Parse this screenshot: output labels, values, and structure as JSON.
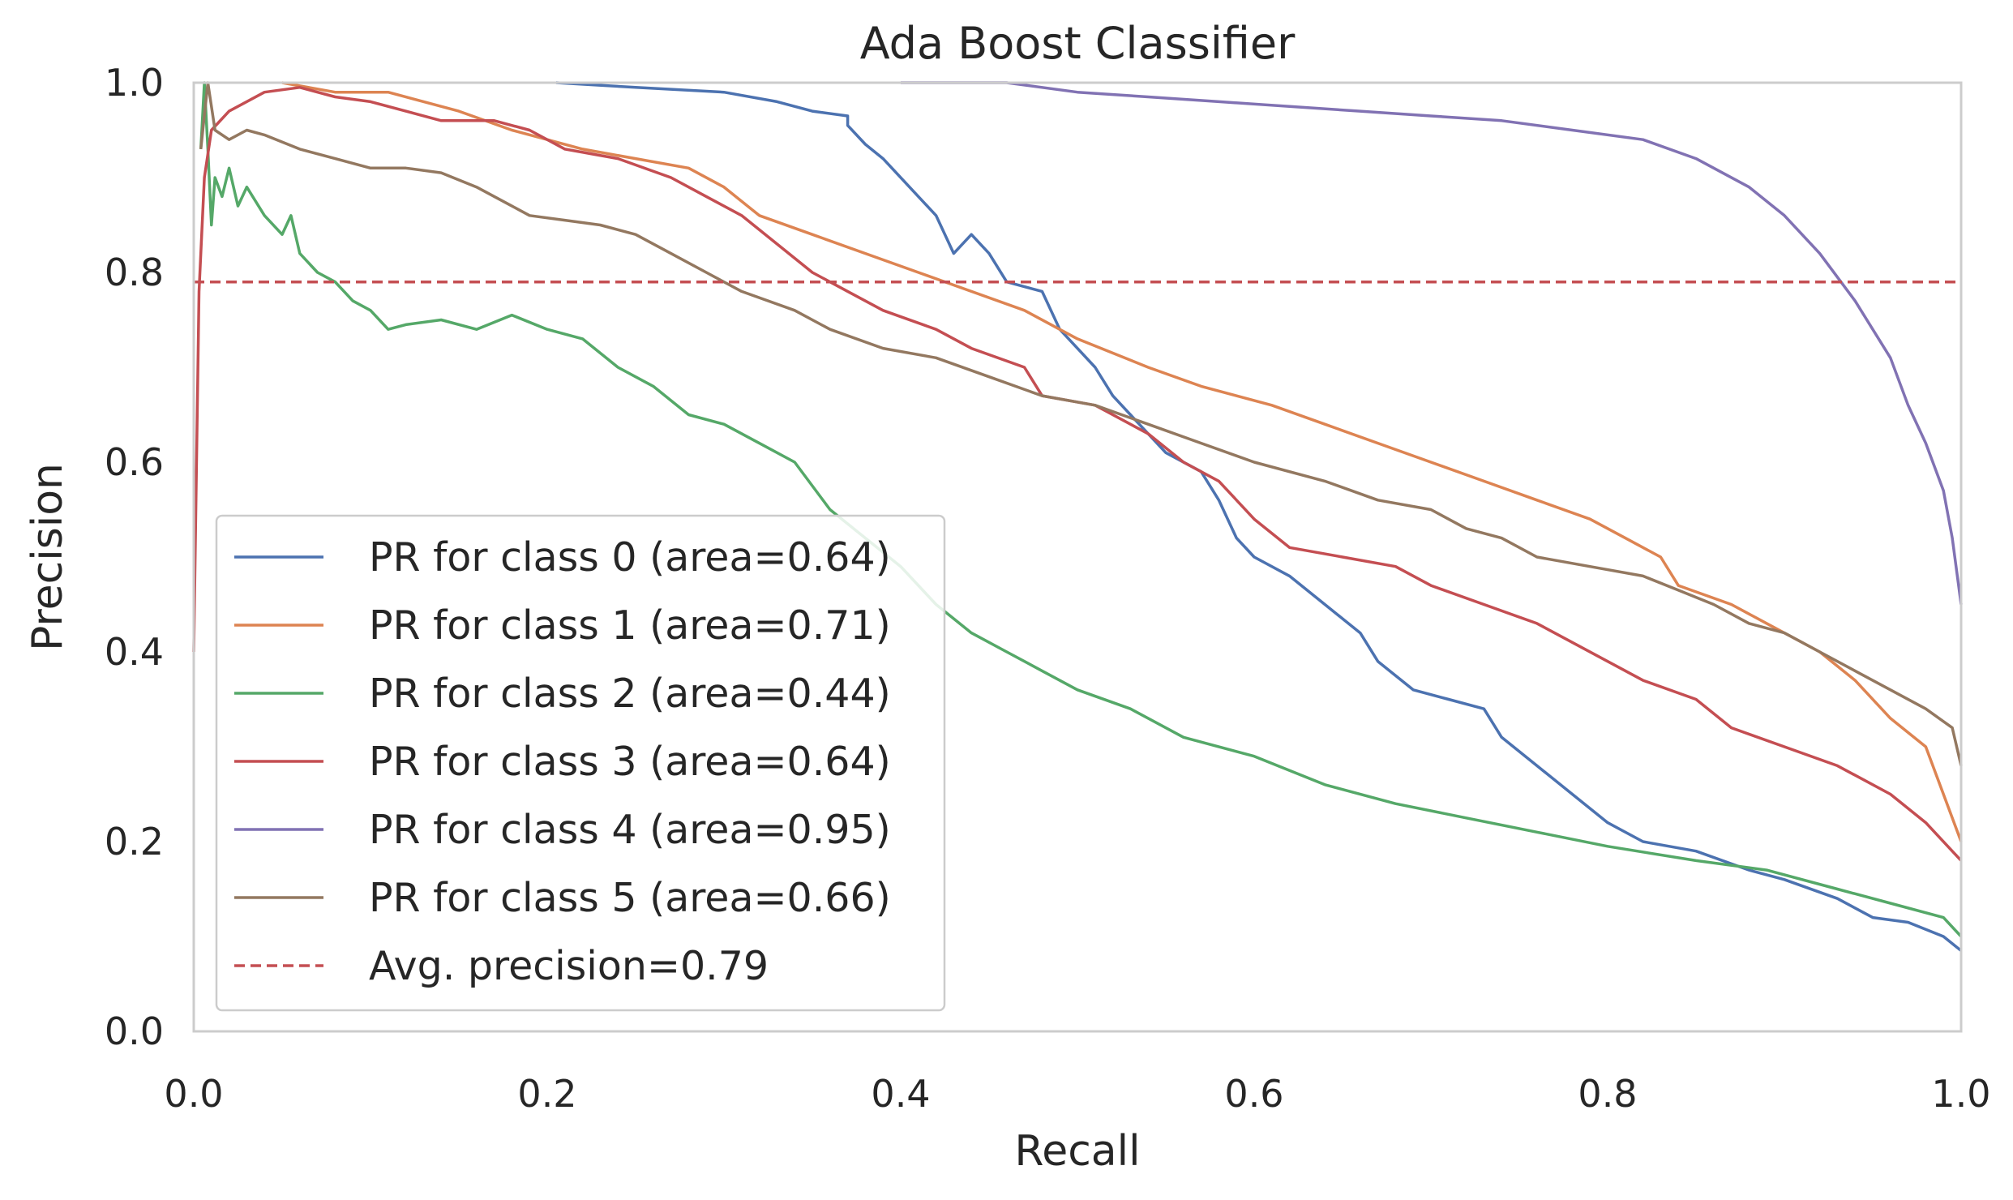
{
  "chart_data": {
    "type": "line",
    "title": "Ada Boost Classifier",
    "xlabel": "Recall",
    "ylabel": "Precision",
    "xlim": [
      0.0,
      1.0
    ],
    "ylim": [
      0.0,
      1.0
    ],
    "xticks": [
      "0.0",
      "0.2",
      "0.4",
      "0.6",
      "0.8",
      "1.0"
    ],
    "yticks": [
      "0.0",
      "0.2",
      "0.4",
      "0.6",
      "0.8",
      "1.0"
    ],
    "grid": false,
    "legend_position": "lower-left",
    "series": [
      {
        "name": "PR for class 0 (area=0.64)",
        "color": "#4c72b0",
        "points": [
          [
            0.205,
            1.0
          ],
          [
            0.25,
            0.995
          ],
          [
            0.3,
            0.99
          ],
          [
            0.33,
            0.98
          ],
          [
            0.35,
            0.97
          ],
          [
            0.37,
            0.965
          ],
          [
            0.37,
            0.955
          ],
          [
            0.38,
            0.935
          ],
          [
            0.39,
            0.92
          ],
          [
            0.41,
            0.88
          ],
          [
            0.42,
            0.86
          ],
          [
            0.43,
            0.82
          ],
          [
            0.44,
            0.84
          ],
          [
            0.45,
            0.82
          ],
          [
            0.46,
            0.79
          ],
          [
            0.48,
            0.78
          ],
          [
            0.49,
            0.74
          ],
          [
            0.5,
            0.72
          ],
          [
            0.51,
            0.7
          ],
          [
            0.52,
            0.67
          ],
          [
            0.53,
            0.65
          ],
          [
            0.54,
            0.63
          ],
          [
            0.55,
            0.61
          ],
          [
            0.57,
            0.59
          ],
          [
            0.58,
            0.56
          ],
          [
            0.59,
            0.52
          ],
          [
            0.6,
            0.5
          ],
          [
            0.62,
            0.48
          ],
          [
            0.64,
            0.45
          ],
          [
            0.66,
            0.42
          ],
          [
            0.67,
            0.39
          ],
          [
            0.69,
            0.36
          ],
          [
            0.71,
            0.35
          ],
          [
            0.73,
            0.34
          ],
          [
            0.74,
            0.31
          ],
          [
            0.76,
            0.28
          ],
          [
            0.78,
            0.25
          ],
          [
            0.8,
            0.22
          ],
          [
            0.82,
            0.2
          ],
          [
            0.85,
            0.19
          ],
          [
            0.88,
            0.17
          ],
          [
            0.9,
            0.16
          ],
          [
            0.93,
            0.14
          ],
          [
            0.95,
            0.12
          ],
          [
            0.97,
            0.115
          ],
          [
            0.99,
            0.1
          ],
          [
            1.0,
            0.085
          ]
        ]
      },
      {
        "name": "PR for class 1 (area=0.71)",
        "color": "#dd8452",
        "points": [
          [
            0.05,
            1.0
          ],
          [
            0.08,
            0.99
          ],
          [
            0.11,
            0.99
          ],
          [
            0.15,
            0.97
          ],
          [
            0.18,
            0.95
          ],
          [
            0.2,
            0.94
          ],
          [
            0.22,
            0.93
          ],
          [
            0.25,
            0.92
          ],
          [
            0.28,
            0.91
          ],
          [
            0.3,
            0.89
          ],
          [
            0.32,
            0.86
          ],
          [
            0.35,
            0.84
          ],
          [
            0.38,
            0.82
          ],
          [
            0.41,
            0.8
          ],
          [
            0.44,
            0.78
          ],
          [
            0.47,
            0.76
          ],
          [
            0.5,
            0.73
          ],
          [
            0.54,
            0.7
          ],
          [
            0.57,
            0.68
          ],
          [
            0.61,
            0.66
          ],
          [
            0.64,
            0.64
          ],
          [
            0.67,
            0.62
          ],
          [
            0.7,
            0.6
          ],
          [
            0.73,
            0.58
          ],
          [
            0.76,
            0.56
          ],
          [
            0.79,
            0.54
          ],
          [
            0.81,
            0.52
          ],
          [
            0.83,
            0.5
          ],
          [
            0.84,
            0.47
          ],
          [
            0.87,
            0.45
          ],
          [
            0.89,
            0.43
          ],
          [
            0.92,
            0.4
          ],
          [
            0.94,
            0.37
          ],
          [
            0.96,
            0.33
          ],
          [
            0.98,
            0.3
          ],
          [
            0.99,
            0.25
          ],
          [
            1.0,
            0.2
          ]
        ]
      },
      {
        "name": "PR for class 2 (area=0.44)",
        "color": "#55a868",
        "points": [
          [
            0.004,
            0.93
          ],
          [
            0.006,
            1.0
          ],
          [
            0.008,
            0.93
          ],
          [
            0.01,
            0.85
          ],
          [
            0.012,
            0.9
          ],
          [
            0.016,
            0.88
          ],
          [
            0.02,
            0.91
          ],
          [
            0.025,
            0.87
          ],
          [
            0.03,
            0.89
          ],
          [
            0.04,
            0.86
          ],
          [
            0.05,
            0.84
          ],
          [
            0.055,
            0.86
          ],
          [
            0.06,
            0.82
          ],
          [
            0.07,
            0.8
          ],
          [
            0.08,
            0.79
          ],
          [
            0.09,
            0.77
          ],
          [
            0.1,
            0.76
          ],
          [
            0.11,
            0.74
          ],
          [
            0.12,
            0.745
          ],
          [
            0.14,
            0.75
          ],
          [
            0.16,
            0.74
          ],
          [
            0.18,
            0.755
          ],
          [
            0.2,
            0.74
          ],
          [
            0.22,
            0.73
          ],
          [
            0.24,
            0.7
          ],
          [
            0.26,
            0.68
          ],
          [
            0.28,
            0.65
          ],
          [
            0.3,
            0.64
          ],
          [
            0.32,
            0.62
          ],
          [
            0.34,
            0.6
          ],
          [
            0.36,
            0.55
          ],
          [
            0.38,
            0.52
          ],
          [
            0.4,
            0.49
          ],
          [
            0.42,
            0.45
          ],
          [
            0.44,
            0.42
          ],
          [
            0.46,
            0.4
          ],
          [
            0.48,
            0.38
          ],
          [
            0.5,
            0.36
          ],
          [
            0.53,
            0.34
          ],
          [
            0.56,
            0.31
          ],
          [
            0.6,
            0.29
          ],
          [
            0.64,
            0.26
          ],
          [
            0.68,
            0.24
          ],
          [
            0.72,
            0.225
          ],
          [
            0.76,
            0.21
          ],
          [
            0.8,
            0.195
          ],
          [
            0.85,
            0.18
          ],
          [
            0.89,
            0.17
          ],
          [
            0.93,
            0.15
          ],
          [
            0.96,
            0.135
          ],
          [
            0.99,
            0.12
          ],
          [
            1.0,
            0.1
          ]
        ]
      },
      {
        "name": "PR for class 3 (area=0.64)",
        "color": "#c44e52",
        "points": [
          [
            0.0,
            0.4
          ],
          [
            0.003,
            0.78
          ],
          [
            0.006,
            0.9
          ],
          [
            0.01,
            0.95
          ],
          [
            0.02,
            0.97
          ],
          [
            0.04,
            0.99
          ],
          [
            0.06,
            0.995
          ],
          [
            0.08,
            0.985
          ],
          [
            0.1,
            0.98
          ],
          [
            0.12,
            0.97
          ],
          [
            0.14,
            0.96
          ],
          [
            0.17,
            0.96
          ],
          [
            0.19,
            0.95
          ],
          [
            0.21,
            0.93
          ],
          [
            0.24,
            0.92
          ],
          [
            0.27,
            0.9
          ],
          [
            0.29,
            0.88
          ],
          [
            0.31,
            0.86
          ],
          [
            0.33,
            0.83
          ],
          [
            0.35,
            0.8
          ],
          [
            0.37,
            0.78
          ],
          [
            0.39,
            0.76
          ],
          [
            0.42,
            0.74
          ],
          [
            0.44,
            0.72
          ],
          [
            0.47,
            0.7
          ],
          [
            0.48,
            0.67
          ],
          [
            0.51,
            0.66
          ],
          [
            0.54,
            0.63
          ],
          [
            0.56,
            0.6
          ],
          [
            0.58,
            0.58
          ],
          [
            0.6,
            0.54
          ],
          [
            0.62,
            0.51
          ],
          [
            0.65,
            0.5
          ],
          [
            0.68,
            0.49
          ],
          [
            0.7,
            0.47
          ],
          [
            0.73,
            0.45
          ],
          [
            0.76,
            0.43
          ],
          [
            0.78,
            0.41
          ],
          [
            0.8,
            0.39
          ],
          [
            0.82,
            0.37
          ],
          [
            0.85,
            0.35
          ],
          [
            0.87,
            0.32
          ],
          [
            0.9,
            0.3
          ],
          [
            0.93,
            0.28
          ],
          [
            0.96,
            0.25
          ],
          [
            0.98,
            0.22
          ],
          [
            1.0,
            0.18
          ]
        ]
      },
      {
        "name": "PR for class 4 (area=0.95)",
        "color": "#8172b3",
        "points": [
          [
            0.4,
            1.0
          ],
          [
            0.46,
            1.0
          ],
          [
            0.5,
            0.99
          ],
          [
            0.54,
            0.985
          ],
          [
            0.58,
            0.98
          ],
          [
            0.62,
            0.975
          ],
          [
            0.66,
            0.97
          ],
          [
            0.7,
            0.965
          ],
          [
            0.74,
            0.96
          ],
          [
            0.78,
            0.95
          ],
          [
            0.82,
            0.94
          ],
          [
            0.85,
            0.92
          ],
          [
            0.88,
            0.89
          ],
          [
            0.9,
            0.86
          ],
          [
            0.92,
            0.82
          ],
          [
            0.94,
            0.77
          ],
          [
            0.96,
            0.71
          ],
          [
            0.97,
            0.66
          ],
          [
            0.98,
            0.62
          ],
          [
            0.99,
            0.57
          ],
          [
            0.995,
            0.52
          ],
          [
            1.0,
            0.45
          ]
        ]
      },
      {
        "name": "PR for class 5 (area=0.66)",
        "color": "#937860",
        "points": [
          [
            0.004,
            0.93
          ],
          [
            0.008,
            1.0
          ],
          [
            0.012,
            0.95
          ],
          [
            0.02,
            0.94
          ],
          [
            0.03,
            0.95
          ],
          [
            0.04,
            0.945
          ],
          [
            0.06,
            0.93
          ],
          [
            0.08,
            0.92
          ],
          [
            0.1,
            0.91
          ],
          [
            0.12,
            0.91
          ],
          [
            0.14,
            0.905
          ],
          [
            0.16,
            0.89
          ],
          [
            0.18,
            0.87
          ],
          [
            0.19,
            0.86
          ],
          [
            0.21,
            0.855
          ],
          [
            0.23,
            0.85
          ],
          [
            0.25,
            0.84
          ],
          [
            0.27,
            0.82
          ],
          [
            0.29,
            0.8
          ],
          [
            0.31,
            0.78
          ],
          [
            0.34,
            0.76
          ],
          [
            0.36,
            0.74
          ],
          [
            0.39,
            0.72
          ],
          [
            0.42,
            0.71
          ],
          [
            0.45,
            0.69
          ],
          [
            0.48,
            0.67
          ],
          [
            0.51,
            0.66
          ],
          [
            0.54,
            0.64
          ],
          [
            0.57,
            0.62
          ],
          [
            0.6,
            0.6
          ],
          [
            0.64,
            0.58
          ],
          [
            0.67,
            0.56
          ],
          [
            0.7,
            0.55
          ],
          [
            0.72,
            0.53
          ],
          [
            0.74,
            0.52
          ],
          [
            0.76,
            0.5
          ],
          [
            0.79,
            0.49
          ],
          [
            0.82,
            0.48
          ],
          [
            0.84,
            0.465
          ],
          [
            0.86,
            0.45
          ],
          [
            0.88,
            0.43
          ],
          [
            0.9,
            0.42
          ],
          [
            0.92,
            0.4
          ],
          [
            0.94,
            0.38
          ],
          [
            0.96,
            0.36
          ],
          [
            0.98,
            0.34
          ],
          [
            0.995,
            0.32
          ],
          [
            1.0,
            0.28
          ]
        ]
      }
    ],
    "reference_line": {
      "name": "Avg. precision=0.79",
      "y": 0.79,
      "color": "#c44e52",
      "style": "dashed"
    }
  }
}
